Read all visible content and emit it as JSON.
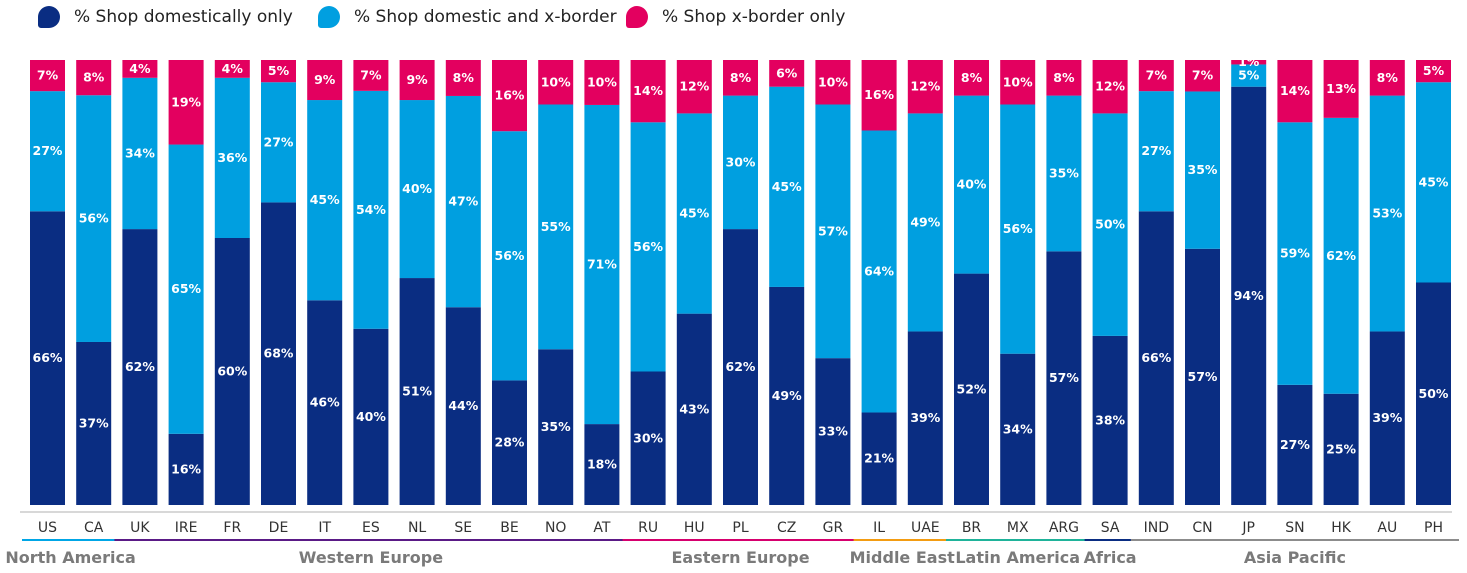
{
  "chart_data": {
    "type": "bar",
    "stacked": true,
    "normalized": true,
    "categories": [
      "US",
      "CA",
      "UK",
      "IRE",
      "FR",
      "DE",
      "IT",
      "ES",
      "NL",
      "SE",
      "BE",
      "NO",
      "AT",
      "RU",
      "HU",
      "PL",
      "CZ",
      "GR",
      "IL",
      "UAE",
      "BR",
      "MX",
      "ARG",
      "SA",
      "IND",
      "CN",
      "JP",
      "SN",
      "HK",
      "AU",
      "PH"
    ],
    "series": [
      {
        "name": "% Shop domestically only",
        "color": "#0a2d82",
        "values": [
          66,
          37,
          62,
          16,
          60,
          68,
          46,
          40,
          51,
          44,
          28,
          35,
          18,
          30,
          43,
          62,
          49,
          33,
          21,
          39,
          52,
          34,
          57,
          38,
          66,
          57,
          94,
          27,
          25,
          39,
          50
        ]
      },
      {
        "name": "% Shop domestic and x-border",
        "color": "#009fe0",
        "values": [
          27,
          56,
          34,
          65,
          36,
          27,
          45,
          54,
          40,
          47,
          56,
          55,
          71,
          56,
          45,
          30,
          45,
          57,
          64,
          49,
          40,
          56,
          35,
          50,
          27,
          35,
          5,
          59,
          62,
          53,
          45
        ]
      },
      {
        "name": "% Shop x-border only",
        "color": "#e3005f",
        "values": [
          7,
          8,
          4,
          19,
          4,
          5,
          9,
          7,
          9,
          8,
          16,
          10,
          10,
          14,
          12,
          8,
          6,
          10,
          16,
          12,
          8,
          10,
          8,
          12,
          7,
          7,
          1,
          14,
          13,
          8,
          5
        ]
      }
    ],
    "data_labels": [
      [
        "66%",
        "37%",
        "62%",
        "16%",
        "60%",
        "68%",
        "46%",
        "40%",
        "51%",
        "44%",
        "28%",
        "35%",
        "18%",
        "30%",
        "43%",
        "62%",
        "49%",
        "33%",
        "21%",
        "39%",
        "52%",
        "34%",
        "57%",
        "38%",
        "66%",
        "57%",
        "94%",
        "27%",
        "25%",
        "39%",
        "50%"
      ],
      [
        "27%",
        "56%",
        "34%",
        "65%",
        "36%",
        "27%",
        "45%",
        "54%",
        "40%",
        "47%",
        "56%",
        "55%",
        "71%",
        "56%",
        "45%",
        "30%",
        "45%",
        "57%",
        "64%",
        "49%",
        "40%",
        "56%",
        "35%",
        "50%",
        "27%",
        "35%",
        "5%",
        "59%",
        "62%",
        "53%",
        "45%"
      ],
      [
        "7%",
        "8%",
        "4%",
        "19%",
        "4%",
        "5%",
        "9%",
        "7%",
        "9%",
        "8%",
        "16%",
        "10%",
        "10%",
        "14%",
        "12%",
        "8%",
        "6%",
        "10%",
        "16%",
        "12%",
        "8%",
        "10%",
        "8%",
        "12%",
        "7%",
        "7%",
        "1%",
        "14%",
        "13%",
        "8%",
        "5%"
      ]
    ],
    "regions": [
      {
        "name": "North America",
        "start": 0,
        "end": 1,
        "color": "#00a6e6"
      },
      {
        "name": "Western Europe",
        "start": 2,
        "end": 12,
        "color": "#5a1a86"
      },
      {
        "name": "Eastern Europe",
        "start": 13,
        "end": 17,
        "color": "#d6006e"
      },
      {
        "name": "Middle East",
        "start": 18,
        "end": 19,
        "color": "#f39c12"
      },
      {
        "name": "Latin America",
        "start": 20,
        "end": 22,
        "color": "#1fb39a"
      },
      {
        "name": "Africa",
        "start": 23,
        "end": 23,
        "color": "#0a2d82"
      },
      {
        "name": "Asia Pacific",
        "start": 24,
        "end": 30,
        "color": "#8c8c8c"
      }
    ],
    "legend_position": "top-left",
    "title": "",
    "xlabel": "",
    "ylabel": "",
    "ylim": [
      0,
      100
    ]
  }
}
